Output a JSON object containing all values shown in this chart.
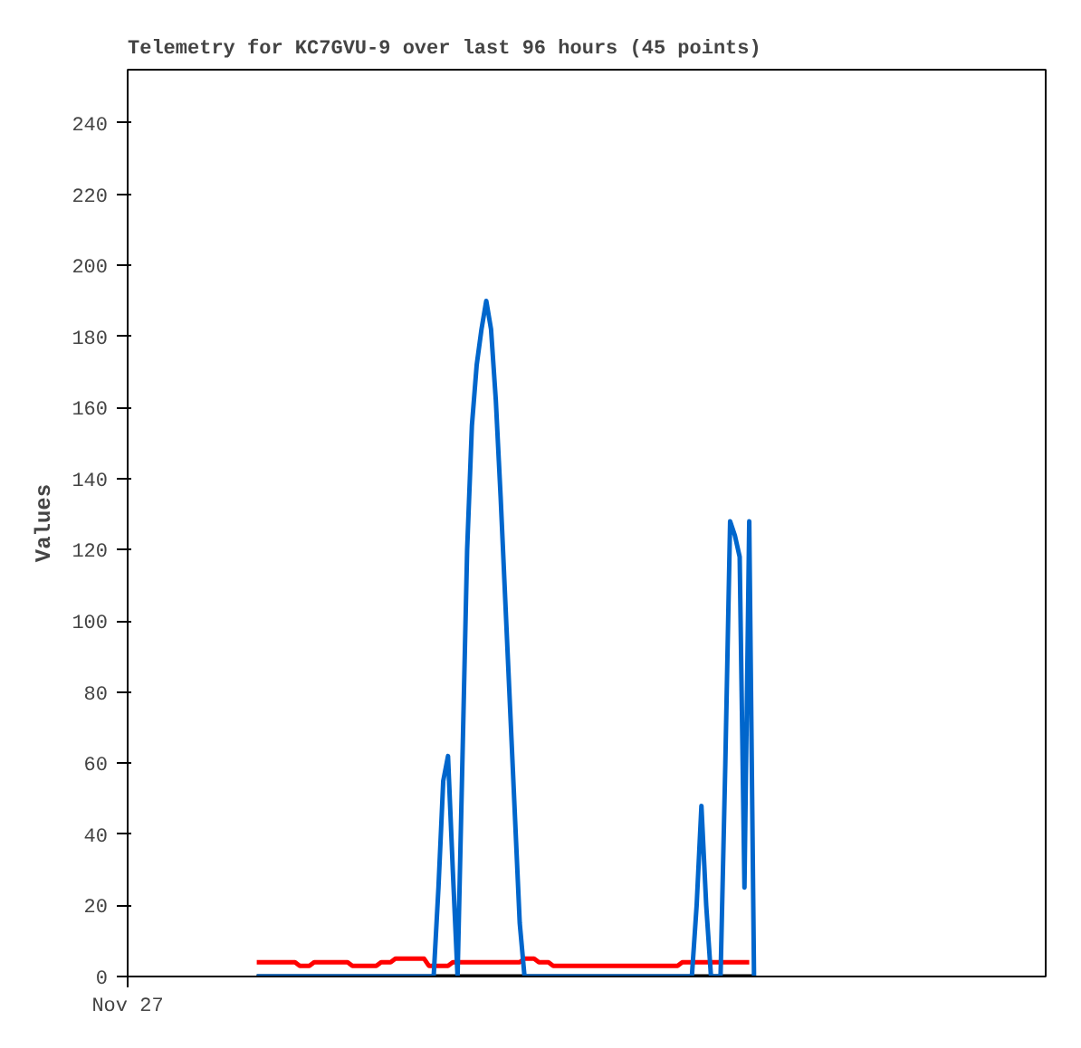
{
  "chart_data": {
    "type": "line",
    "title": "Telemetry for KC7GVU-9 over last 96 hours (45 points)",
    "ylabel": "Values",
    "ylim": [
      0,
      255
    ],
    "categories": [
      "Nov 27",
      null,
      null,
      null,
      null,
      null,
      null,
      null,
      null,
      null,
      null,
      null,
      null,
      null,
      null,
      null,
      null,
      null,
      null,
      null,
      null,
      null,
      null,
      null,
      null,
      null,
      null,
      null,
      null,
      null,
      null,
      null,
      null,
      null,
      null,
      null,
      null,
      null,
      null,
      null,
      null,
      null,
      null,
      null,
      null,
      null,
      null,
      null,
      null,
      null,
      null,
      null,
      null,
      null,
      null,
      null,
      null,
      null,
      null,
      null,
      null,
      null,
      null,
      null,
      null,
      null,
      null,
      null,
      null,
      null,
      null,
      null,
      null,
      null,
      null,
      null,
      null,
      null,
      null,
      null,
      null,
      null,
      null,
      null,
      null,
      null,
      null,
      null,
      null,
      null,
      null,
      null,
      null,
      null,
      null,
      null,
      null,
      null,
      null,
      null,
      null,
      null,
      null,
      null,
      null,
      null,
      null,
      null,
      null,
      null,
      null,
      null,
      null,
      null,
      null,
      null,
      null,
      null,
      null,
      null,
      null,
      null,
      null,
      null,
      null,
      null,
      null,
      null,
      null,
      null,
      null,
      null,
      null,
      null,
      null,
      null,
      null,
      null,
      null,
      null,
      null,
      null,
      null,
      null,
      null,
      null,
      null,
      null,
      null,
      null,
      null,
      null,
      null,
      null,
      null,
      null,
      null,
      null,
      null,
      null,
      null,
      null,
      null,
      null,
      null,
      null,
      null,
      null,
      null,
      null,
      null,
      null,
      null,
      null,
      null,
      null,
      null,
      null,
      null,
      null,
      null,
      null,
      null,
      null,
      null,
      null,
      null,
      null,
      null,
      null,
      null,
      null,
      null
    ],
    "yticks": [
      0,
      20,
      40,
      60,
      80,
      100,
      120,
      140,
      160,
      180,
      200,
      220,
      240
    ],
    "grid": false,
    "marker": "none",
    "line_style": "solid",
    "series": [
      {
        "color": "#ff0000",
        "values": [
          null,
          null,
          null,
          null,
          null,
          null,
          null,
          null,
          null,
          null,
          null,
          null,
          null,
          null,
          null,
          null,
          null,
          null,
          null,
          null,
          null,
          null,
          null,
          null,
          null,
          null,
          null,
          4,
          4,
          4,
          4,
          4,
          4,
          4,
          4,
          4,
          3,
          3,
          3,
          4,
          4,
          4,
          4,
          4,
          4,
          4,
          4,
          3,
          3,
          3,
          3,
          3,
          3,
          4,
          4,
          4,
          5,
          5,
          5,
          5,
          5,
          5,
          5,
          3,
          3,
          3,
          3,
          3,
          4,
          4,
          4,
          4,
          4,
          4,
          4,
          4,
          4,
          4,
          4,
          4,
          4,
          4,
          4,
          5,
          5,
          5,
          4,
          4,
          4,
          3,
          3,
          3,
          3,
          3,
          3,
          3,
          3,
          3,
          3,
          3,
          3,
          3,
          3,
          3,
          3,
          3,
          3,
          3,
          3,
          3,
          3,
          3,
          3,
          3,
          3,
          3,
          4,
          4,
          4,
          4,
          4,
          4,
          4,
          4,
          4,
          4,
          4,
          4,
          4,
          4,
          4,
          null,
          null,
          null,
          null,
          null,
          null,
          null,
          null,
          null,
          null,
          null,
          null,
          null,
          null,
          null,
          null,
          null,
          null,
          null,
          null,
          null,
          null,
          null,
          null,
          null,
          null,
          null,
          null,
          null,
          null,
          null,
          null,
          null,
          null,
          null,
          null,
          null,
          null,
          null,
          null,
          null,
          null,
          null,
          null,
          null,
          null,
          null,
          null,
          null,
          null,
          null,
          null,
          null,
          null,
          null,
          null,
          null,
          null,
          null,
          null,
          null,
          null
        ]
      },
      {
        "color": "#000000",
        "values": [
          null,
          null,
          null,
          null,
          null,
          null,
          null,
          null,
          null,
          null,
          null,
          null,
          null,
          null,
          null,
          null,
          null,
          null,
          null,
          null,
          null,
          null,
          null,
          null,
          null,
          null,
          null,
          0,
          0,
          0,
          0,
          0,
          0,
          0,
          0,
          0,
          0,
          0,
          0,
          0,
          0,
          0,
          0,
          0,
          0,
          0,
          0,
          0,
          0,
          0,
          0,
          0,
          0,
          0,
          0,
          0,
          0,
          0,
          0,
          0,
          0,
          0,
          0,
          0,
          0,
          0,
          0,
          0,
          0,
          0,
          0,
          0,
          0,
          0,
          0,
          0,
          0,
          0,
          0,
          0,
          0,
          0,
          0,
          0,
          0,
          0,
          0,
          0,
          0,
          0,
          0,
          0,
          0,
          0,
          0,
          0,
          0,
          0,
          0,
          0,
          0,
          0,
          0,
          0,
          0,
          0,
          0,
          0,
          0,
          0,
          0,
          0,
          0,
          0,
          0,
          0,
          0,
          0,
          0,
          0,
          0,
          0,
          0,
          0,
          0,
          0,
          0,
          0,
          0,
          0,
          0,
          0,
          null,
          null,
          null,
          null,
          null,
          null,
          null,
          null,
          null,
          null,
          null,
          null,
          null,
          null,
          null,
          null,
          null,
          null,
          null,
          null,
          null,
          null,
          null,
          null,
          null,
          null,
          null,
          null,
          null,
          null,
          null,
          null,
          null,
          null,
          null,
          null,
          null,
          null,
          null,
          null,
          null,
          null,
          null,
          null,
          null,
          null,
          null,
          null,
          null,
          null,
          null,
          null,
          null,
          null,
          null,
          null,
          null,
          null,
          null,
          null,
          null
        ]
      },
      {
        "color": "#0066cc",
        "values": [
          null,
          null,
          null,
          null,
          null,
          null,
          null,
          null,
          null,
          null,
          null,
          null,
          null,
          null,
          null,
          null,
          null,
          null,
          null,
          null,
          null,
          null,
          null,
          null,
          null,
          null,
          null,
          0,
          0,
          0,
          0,
          0,
          0,
          0,
          0,
          0,
          0,
          0,
          0,
          0,
          0,
          0,
          0,
          0,
          0,
          0,
          0,
          0,
          0,
          0,
          0,
          0,
          0,
          0,
          0,
          0,
          0,
          0,
          0,
          0,
          0,
          0,
          0,
          0,
          0,
          25,
          55,
          62,
          30,
          0,
          60,
          120,
          155,
          172,
          182,
          190,
          182,
          162,
          135,
          105,
          75,
          45,
          15,
          0,
          0,
          0,
          0,
          0,
          0,
          0,
          0,
          0,
          0,
          0,
          0,
          0,
          0,
          0,
          0,
          0,
          0,
          0,
          0,
          0,
          0,
          0,
          0,
          0,
          0,
          0,
          0,
          0,
          0,
          0,
          0,
          0,
          0,
          0,
          0,
          20,
          48,
          20,
          0,
          0,
          0,
          60,
          128,
          124,
          118,
          25,
          128,
          0,
          null,
          null,
          null,
          null,
          null,
          null,
          null,
          null,
          null,
          null,
          null,
          null,
          null,
          null,
          null,
          null,
          null,
          null,
          null,
          null,
          null,
          null,
          null,
          null,
          null,
          null,
          null,
          null,
          null,
          null,
          null,
          null,
          null,
          null,
          null,
          null,
          null,
          null,
          null,
          null,
          null,
          null,
          null,
          null,
          null,
          null,
          null,
          null,
          null,
          null,
          null,
          null,
          null,
          null,
          null,
          null,
          null,
          null,
          null,
          null,
          null
        ]
      }
    ]
  }
}
